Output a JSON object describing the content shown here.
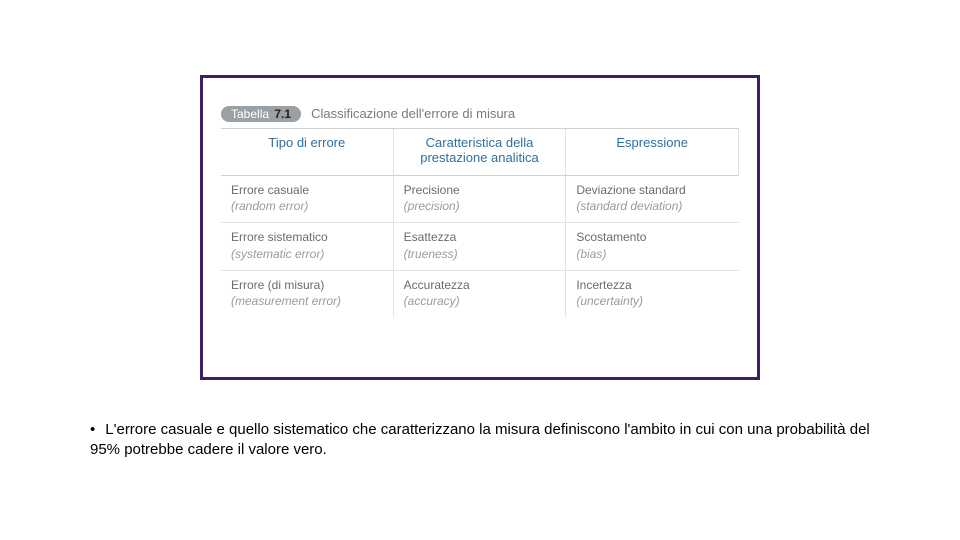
{
  "colors": {
    "frame_border": "#3e1e68",
    "badge_bg": "#9aa0a4",
    "badge_text": "#ffffff",
    "caption_text": "#7a7a7a",
    "header_text": "#2f6f9e",
    "cell_text": "#6b6b6b",
    "cell_sub_text": "#9a9a9a",
    "grid_line": "#d0d0d0",
    "grid_line_light": "#e2e2e2",
    "body_text": "#000000",
    "background": "#ffffff"
  },
  "table": {
    "badge_label": "Tabella",
    "badge_number": "7.1",
    "caption": "Classificazione dell'errore di misura",
    "columns": [
      "Tipo di errore",
      "Caratteristica della prestazione analitica",
      "Espressione"
    ],
    "rows": [
      {
        "c0_main": "Errore casuale",
        "c0_sub": "(random error)",
        "c1_main": "Precisione",
        "c1_sub": "(precision)",
        "c2_main": "Deviazione standard",
        "c2_sub": "(standard deviation)"
      },
      {
        "c0_main": "Errore sistematico",
        "c0_sub": "(systematic error)",
        "c1_main": "Esattezza",
        "c1_sub": "(trueness)",
        "c2_main": "Scostamento",
        "c2_sub": "(bias)"
      },
      {
        "c0_main": "Errore (di misura)",
        "c0_sub": "(measurement error)",
        "c1_main": "Accuratezza",
        "c1_sub": "(accuracy)",
        "c2_main": "Incertezza",
        "c2_sub": "(uncertainty)"
      }
    ]
  },
  "bullet": {
    "text": "L'errore casuale e quello sistematico che caratterizzano la misura definiscono l'ambito in cui con una probabilità del 95% potrebbe cadere il valore vero."
  }
}
